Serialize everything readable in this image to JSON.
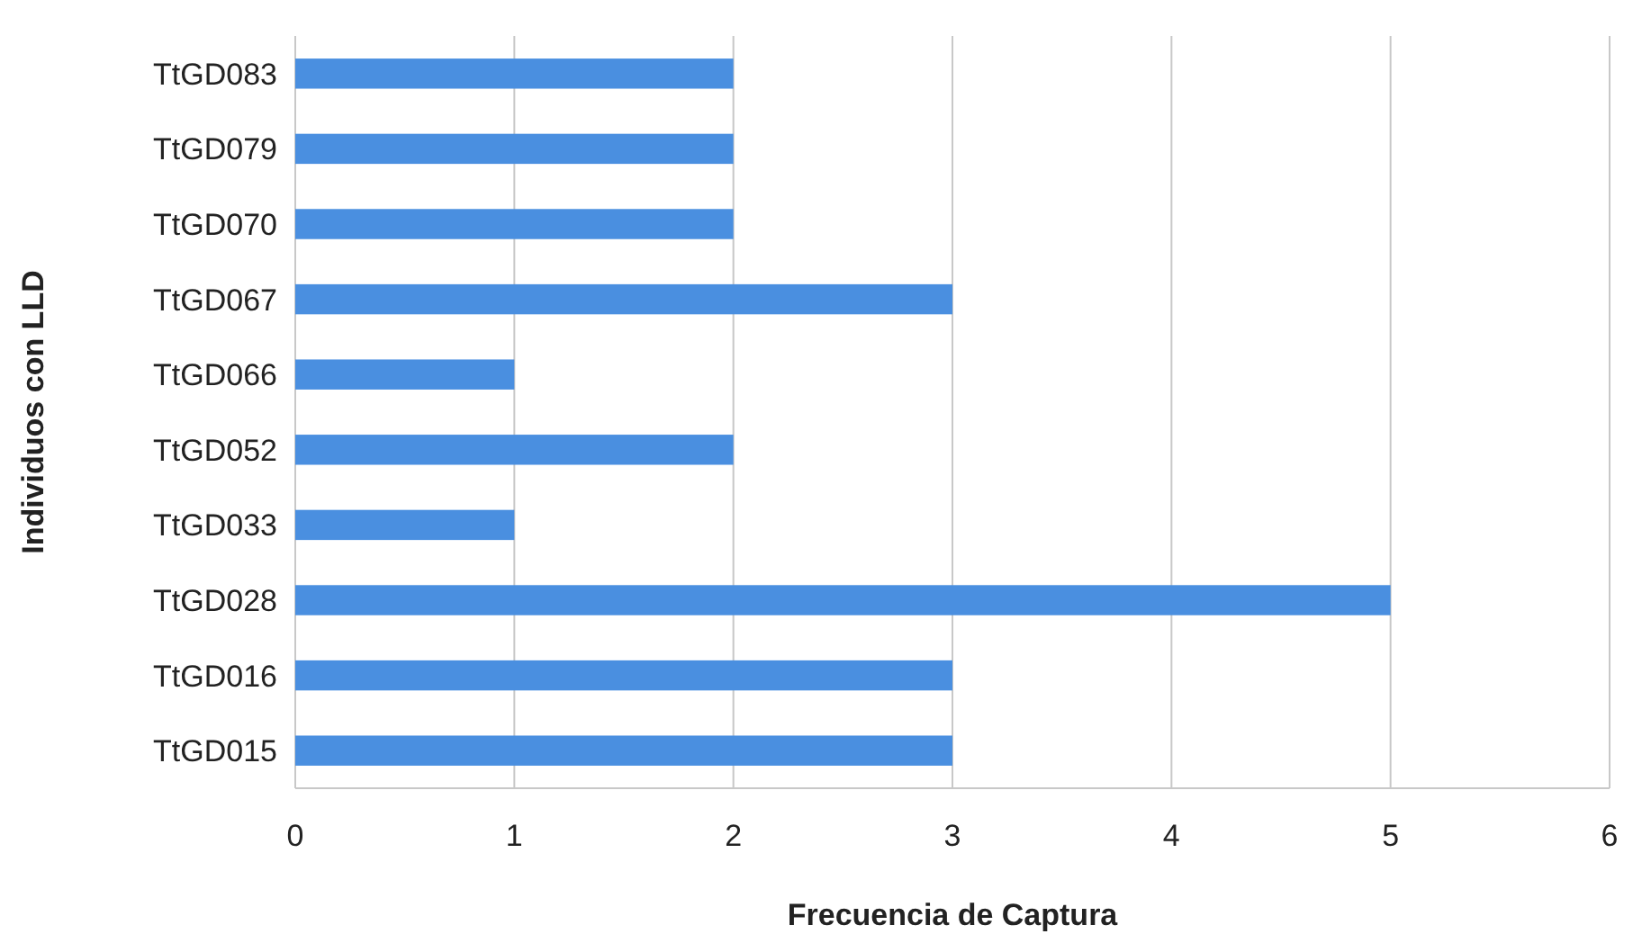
{
  "chart_data": {
    "type": "bar",
    "orientation": "horizontal",
    "xlabel": "Frecuencia de Captura",
    "ylabel": "Individuos con LLD",
    "categories": [
      "TtGD083",
      "TtGD079",
      "TtGD070",
      "TtGD067",
      "TtGD066",
      "TtGD052",
      "TtGD033",
      "TtGD028",
      "TtGD016",
      "TtGD015"
    ],
    "values": [
      2,
      2,
      2,
      3,
      1,
      2,
      1,
      5,
      3,
      3
    ],
    "color": "#4a8fe0",
    "xlim": [
      0,
      6
    ],
    "xticks": [
      0,
      1,
      2,
      3,
      4,
      5,
      6
    ],
    "grid": "x"
  }
}
